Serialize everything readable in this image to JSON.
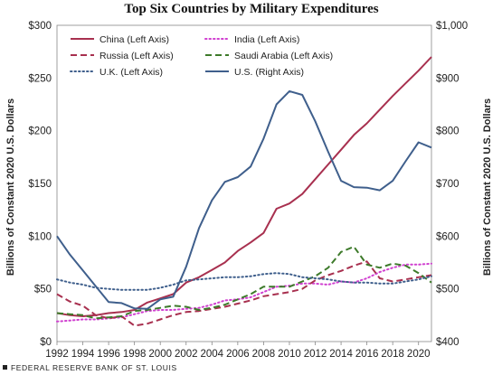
{
  "chart_data": {
    "type": "line",
    "title": "Top Six Countries by Military Expenditures",
    "ylabel_left": "Billions of Constant 2020 U.S. Dollars",
    "ylabel_right": "Billions of Constant 2020 U.S. Dollars",
    "ylim_left": [
      0,
      300
    ],
    "ylim_right": [
      400,
      1000
    ],
    "xlim": [
      1992,
      2021
    ],
    "x_ticks": [
      "1992",
      "1994",
      "1996",
      "1998",
      "2000",
      "2002",
      "2004",
      "2006",
      "2008",
      "2010",
      "2012",
      "2014",
      "2016",
      "2018",
      "2020"
    ],
    "y_ticks_left": [
      "$0",
      "$50",
      "$100",
      "$150",
      "$200",
      "$250",
      "$300"
    ],
    "y_ticks_right": [
      "$400",
      "$500",
      "$600",
      "$700",
      "$800",
      "$900",
      "$1,000"
    ],
    "grid": false,
    "legend_position": "top",
    "x": [
      1992,
      1993,
      1994,
      1995,
      1996,
      1997,
      1998,
      1999,
      2000,
      2001,
      2002,
      2003,
      2004,
      2005,
      2006,
      2007,
      2008,
      2009,
      2010,
      2011,
      2012,
      2013,
      2014,
      2015,
      2016,
      2017,
      2018,
      2019,
      2020,
      2021
    ],
    "series": [
      {
        "name": "China (Left Axis)",
        "axis": "left",
        "color": "#a8304f",
        "dash": "solid",
        "values": [
          27,
          25,
          24,
          25,
          27,
          28,
          30,
          37,
          41,
          45,
          56,
          61,
          68,
          75,
          86,
          94,
          103,
          126,
          131,
          140,
          154,
          168,
          182,
          196,
          207,
          220,
          233,
          245,
          257,
          270
        ]
      },
      {
        "name": "India (Left Axis)",
        "axis": "left",
        "color": "#d040d0",
        "dash": "dot",
        "values": [
          19,
          20,
          21,
          21,
          22,
          23,
          26,
          29,
          30,
          30,
          31,
          32,
          35,
          39,
          40,
          42,
          47,
          52,
          53,
          55,
          55,
          54,
          57,
          56,
          60,
          66,
          70,
          73,
          73,
          74
        ]
      },
      {
        "name": "Russia (Left Axis)",
        "axis": "left",
        "color": "#a8304f",
        "dash": "dash",
        "values": [
          45,
          38,
          34,
          25,
          22,
          24,
          15,
          17,
          21,
          25,
          28,
          29,
          31,
          33,
          36,
          39,
          43,
          45,
          47,
          50,
          58,
          63,
          67,
          72,
          76,
          60,
          57,
          59,
          61,
          63
        ]
      },
      {
        "name": "Saudi Arabia (Left Axis)",
        "axis": "left",
        "color": "#3d7a2a",
        "dash": "dash",
        "values": [
          27,
          26,
          25,
          22,
          23,
          24,
          29,
          30,
          32,
          34,
          33,
          30,
          32,
          35,
          40,
          45,
          52,
          52,
          52,
          57,
          62,
          70,
          85,
          90,
          73,
          70,
          74,
          72,
          65,
          56
        ]
      },
      {
        "name": "U.K. (Left Axis)",
        "axis": "left",
        "color": "#3f5f8c",
        "dash": "dot",
        "values": [
          59,
          56,
          54,
          51,
          50,
          49,
          49,
          49,
          51,
          54,
          58,
          59,
          60,
          61,
          61,
          62,
          64,
          65,
          64,
          61,
          60,
          59,
          57,
          56,
          56,
          55,
          55,
          57,
          59,
          62
        ]
      },
      {
        "name": "U.S. (Right Axis)",
        "axis": "right",
        "color": "#3f5f8c",
        "dash": "solid",
        "values": [
          600,
          565,
          535,
          505,
          475,
          473,
          463,
          462,
          480,
          485,
          542,
          615,
          668,
          703,
          712,
          732,
          785,
          850,
          875,
          868,
          818,
          760,
          705,
          693,
          692,
          687,
          705,
          742,
          778,
          768
        ]
      }
    ]
  },
  "footer": {
    "text": "FEDERAL RESERVE BANK OF ST. LOUIS"
  }
}
